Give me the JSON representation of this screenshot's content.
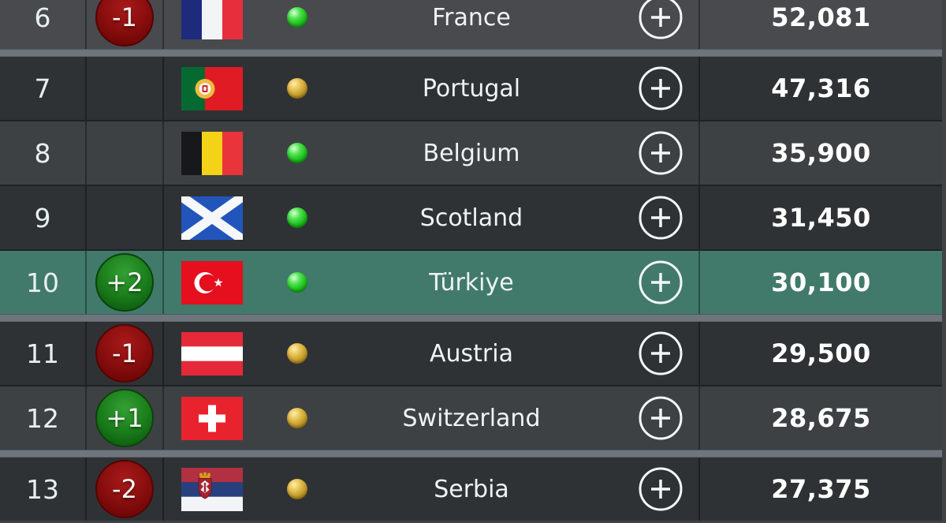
{
  "palette": {
    "page_background": "#3f4347",
    "row_shades": {
      "six": "#484a4e",
      "light": "#3e4144",
      "dark": "#2f3234",
      "highlight": "#417a6a"
    },
    "separator_band": "#6e757d",
    "separator_line": "#1f2224",
    "movement_up_color": "#1b7e1b",
    "movement_down_color": "#8a0f0f",
    "dot_green": "#2fc12f",
    "dot_gold": "#c9a227",
    "text_primary": "#eef3f3",
    "value_text": "#ffffff"
  },
  "icons": {
    "expand": "plus-circle-icon",
    "status_dot": "status-dot"
  },
  "table": {
    "rows": [
      {
        "rank": "6",
        "movement": "-1",
        "movement_type": "down",
        "country": "France",
        "flag": "france",
        "dot": "green",
        "value": "52,081",
        "shade": "six",
        "separator_after": "band"
      },
      {
        "rank": "7",
        "movement": "",
        "movement_type": "none",
        "country": "Portugal",
        "flag": "portugal",
        "dot": "gold",
        "value": "47,316",
        "shade": "dark",
        "separator_after": "line"
      },
      {
        "rank": "8",
        "movement": "",
        "movement_type": "none",
        "country": "Belgium",
        "flag": "belgium",
        "dot": "green",
        "value": "35,900",
        "shade": "light",
        "separator_after": "line"
      },
      {
        "rank": "9",
        "movement": "",
        "movement_type": "none",
        "country": "Scotland",
        "flag": "scotland",
        "dot": "green",
        "value": "31,450",
        "shade": "dark",
        "separator_after": "line"
      },
      {
        "rank": "10",
        "movement": "+2",
        "movement_type": "up",
        "country": "Türkiye",
        "flag": "turkiye",
        "dot": "green",
        "value": "30,100",
        "shade": "highlight",
        "separator_after": "band"
      },
      {
        "rank": "11",
        "movement": "-1",
        "movement_type": "down",
        "country": "Austria",
        "flag": "austria",
        "dot": "gold",
        "value": "29,500",
        "shade": "dark",
        "separator_after": "line"
      },
      {
        "rank": "12",
        "movement": "+1",
        "movement_type": "up",
        "country": "Switzerland",
        "flag": "switzerland",
        "dot": "gold",
        "value": "28,675",
        "shade": "light",
        "separator_after": "band"
      },
      {
        "rank": "13",
        "movement": "-2",
        "movement_type": "down",
        "country": "Serbia",
        "flag": "serbia",
        "dot": "gold",
        "value": "27,375",
        "shade": "dark",
        "separator_after": "none"
      }
    ]
  }
}
